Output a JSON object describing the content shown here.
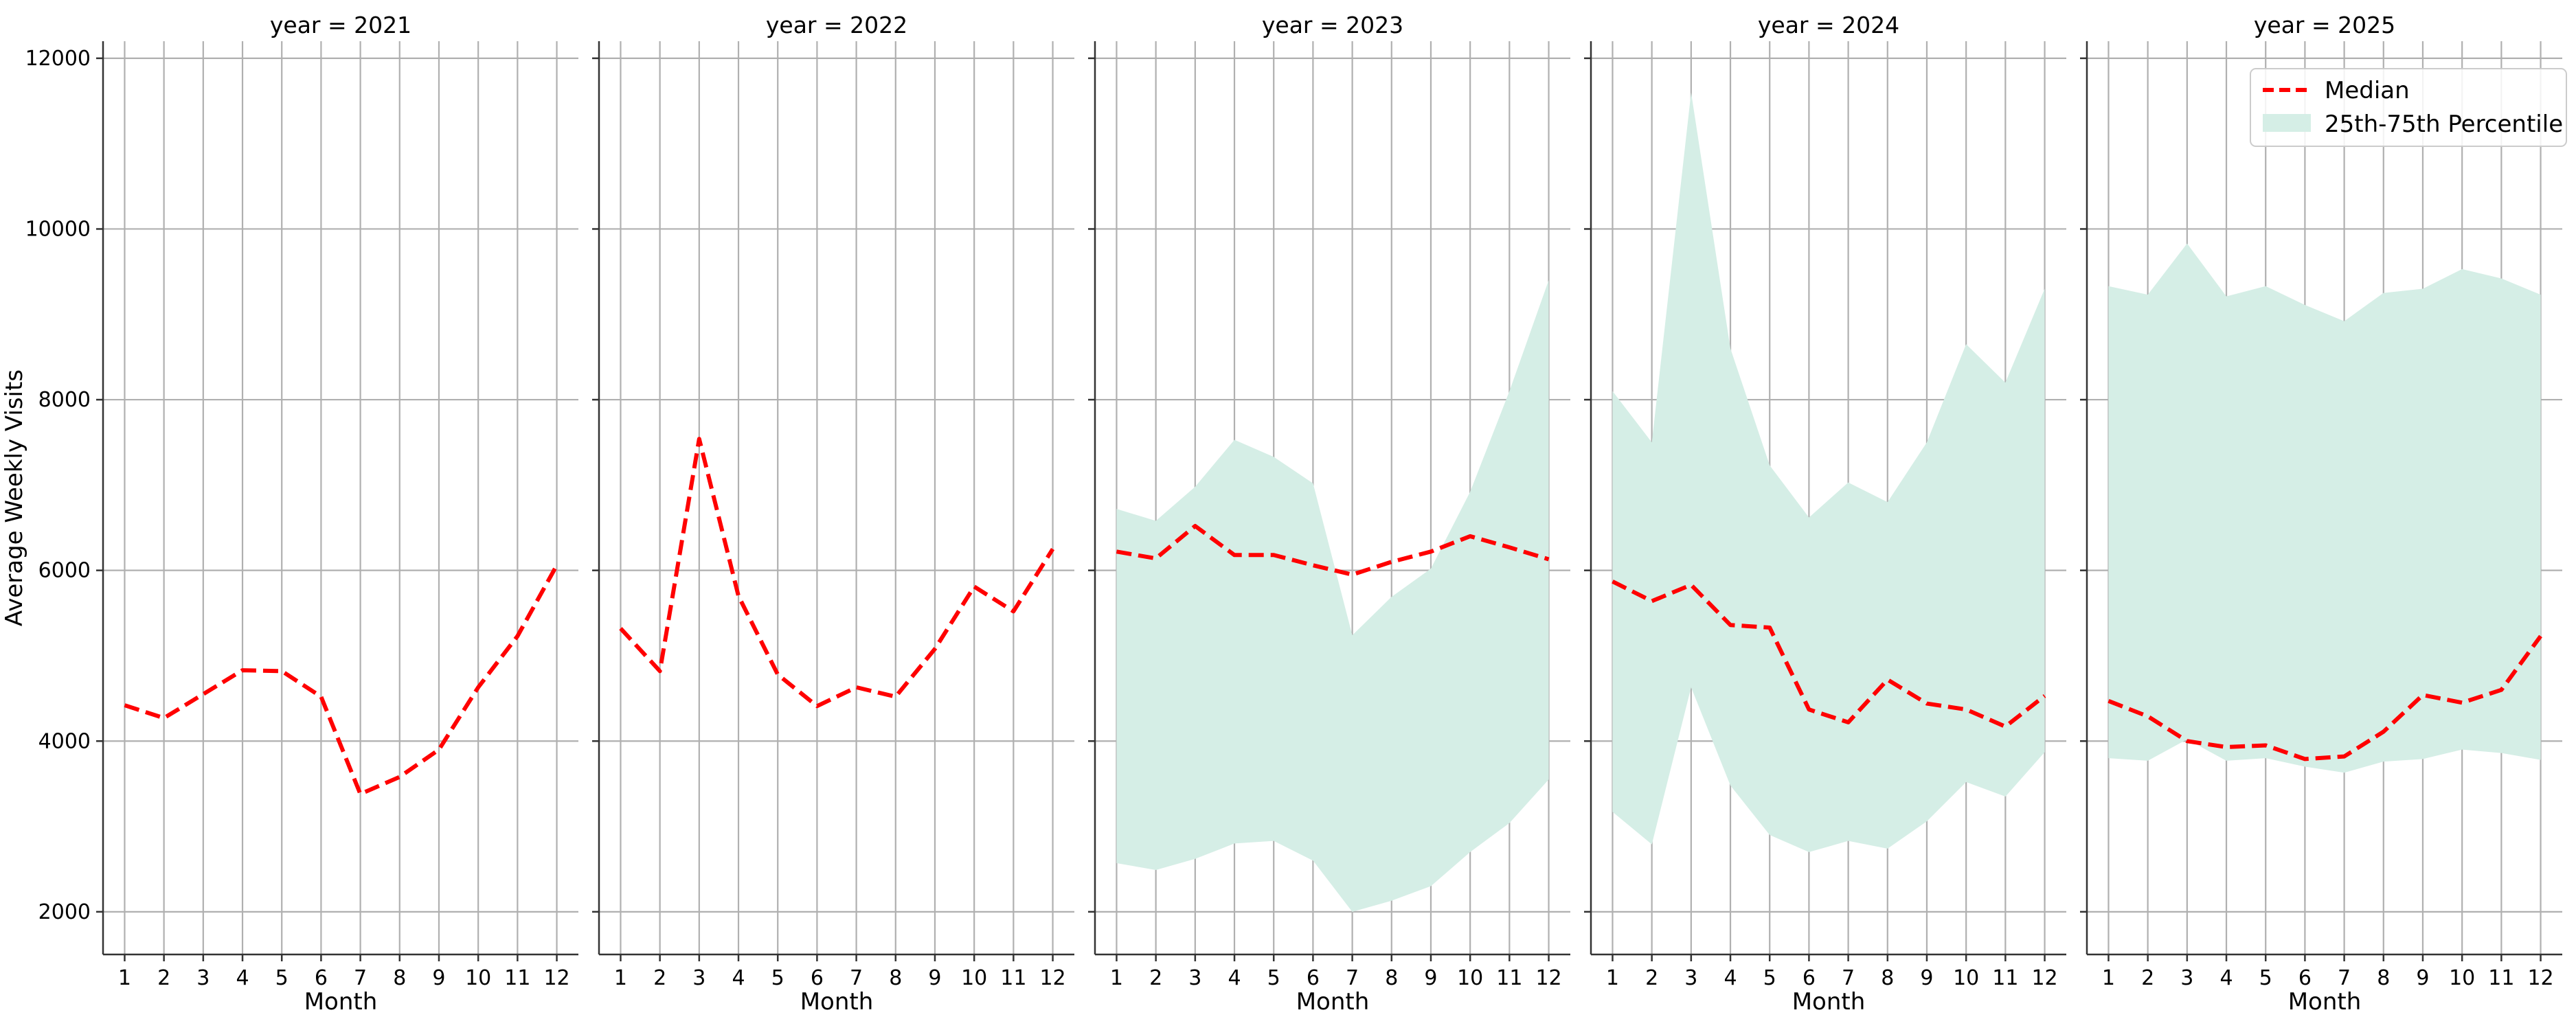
{
  "chart_data": {
    "type": "line",
    "ylabel": "Average Weekly Visits",
    "xlabel": "Month",
    "x": [
      1,
      2,
      3,
      4,
      5,
      6,
      7,
      8,
      9,
      10,
      11,
      12
    ],
    "ylim": [
      1500,
      12200
    ],
    "yticks": [
      2000,
      4000,
      6000,
      8000,
      10000,
      12000
    ],
    "xlim": [
      0.45,
      12.55
    ],
    "grid": true,
    "legend": {
      "placement": "top-right",
      "panel": 4,
      "entries": [
        "Median",
        "25th-75th Percentile"
      ]
    },
    "colors": {
      "median": "#ff0000",
      "band": "#d5eee6",
      "grid": "#b0b0b0",
      "axis": "#333333"
    },
    "panels": [
      {
        "title": "year = 2021",
        "median": [
          4420,
          4270,
          4550,
          4830,
          4820,
          4520,
          3380,
          3580,
          3900,
          4630,
          5230,
          6060
        ],
        "p25": null,
        "p75": null
      },
      {
        "title": "year = 2022",
        "median": [
          5320,
          4820,
          7540,
          5700,
          4780,
          4410,
          4630,
          4520,
          5080,
          5810,
          5520,
          6250
        ],
        "p25": null,
        "p75": null
      },
      {
        "title": "year = 2023",
        "median": [
          6220,
          6140,
          6520,
          6180,
          6180,
          6060,
          5950,
          6100,
          6220,
          6400,
          6270,
          6130
        ],
        "p25": [
          2570,
          2490,
          2620,
          2800,
          2830,
          2600,
          2000,
          2130,
          2300,
          2700,
          3040,
          3550
        ],
        "p75": [
          6720,
          6580,
          6980,
          7530,
          7330,
          7020,
          5240,
          5690,
          6020,
          6920,
          8100,
          9400
        ]
      },
      {
        "title": "year = 2024",
        "median": [
          5870,
          5640,
          5830,
          5360,
          5330,
          4370,
          4220,
          4720,
          4440,
          4370,
          4170,
          4530
        ],
        "p25": [
          3170,
          2790,
          4630,
          3480,
          2900,
          2700,
          2830,
          2740,
          3060,
          3520,
          3350,
          3870
        ],
        "p75": [
          8100,
          7500,
          11600,
          8600,
          7230,
          6620,
          7030,
          6800,
          7500,
          8650,
          8200,
          9300
        ]
      },
      {
        "title": "year = 2025",
        "median": [
          4470,
          4290,
          4000,
          3930,
          3950,
          3790,
          3820,
          4110,
          4540,
          4450,
          4600,
          5230
        ],
        "p25": [
          3800,
          3770,
          4020,
          3770,
          3800,
          3700,
          3630,
          3760,
          3790,
          3900,
          3860,
          3780
        ],
        "p75": [
          9330,
          9230,
          9830,
          9210,
          9330,
          9110,
          8920,
          9250,
          9300,
          9530,
          9420,
          9230
        ]
      }
    ]
  }
}
